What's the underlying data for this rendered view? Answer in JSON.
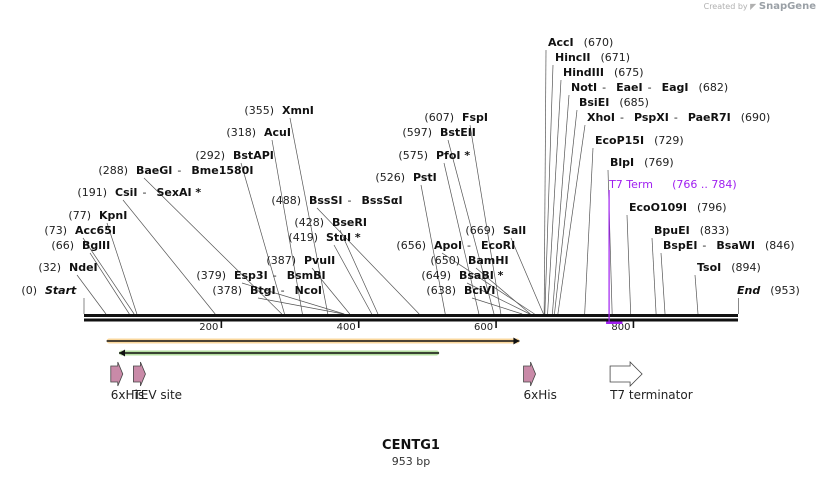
{
  "credit": {
    "prefix": "Created by",
    "brand": "SnapGene"
  },
  "plasmid": {
    "name": "CENTG1",
    "length_label": "953 bp",
    "length": 953
  },
  "ruler": {
    "ticks": [
      200,
      400,
      600,
      800
    ]
  },
  "sites": [
    {
      "pos": 0,
      "pos_label": "(0)",
      "names": [
        "Start"
      ],
      "italic": true,
      "pos_side": "left"
    },
    {
      "pos": 32,
      "pos_label": "(32)",
      "names": [
        "NdeI"
      ],
      "pos_side": "left"
    },
    {
      "pos": 66,
      "pos_label": "(66)",
      "names": [
        "BglII"
      ],
      "pos_side": "left"
    },
    {
      "pos": 73,
      "pos_label": "(73)",
      "names": [
        "Acc65I"
      ],
      "pos_side": "left"
    },
    {
      "pos": 77,
      "pos_label": "(77)",
      "names": [
        "KpnI"
      ],
      "pos_side": "left"
    },
    {
      "pos": 191,
      "pos_label": "(191)",
      "names": [
        "CsiI",
        "SexAI *"
      ],
      "pos_side": "left"
    },
    {
      "pos": 288,
      "pos_label": "(288)",
      "names": [
        "BaeGI",
        "Bme1580I"
      ],
      "pos_side": "left"
    },
    {
      "pos": 292,
      "pos_label": "(292)",
      "names": [
        "BstAPI"
      ],
      "pos_side": "left"
    },
    {
      "pos": 318,
      "pos_label": "(318)",
      "names": [
        "AcuI"
      ],
      "pos_side": "left"
    },
    {
      "pos": 355,
      "pos_label": "(355)",
      "names": [
        "XmnI"
      ],
      "pos_side": "left"
    },
    {
      "pos": 378,
      "pos_label": "(378)",
      "names": [
        "BtgI",
        "NcoI"
      ],
      "pos_side": "left"
    },
    {
      "pos": 379,
      "pos_label": "(379)",
      "names": [
        "Esp3I",
        "BsmBI"
      ],
      "pos_side": "left"
    },
    {
      "pos": 387,
      "pos_label": "(387)",
      "names": [
        "PvuII"
      ],
      "pos_side": "left"
    },
    {
      "pos": 419,
      "pos_label": "(419)",
      "names": [
        "StuI *"
      ],
      "pos_side": "left"
    },
    {
      "pos": 428,
      "pos_label": "(428)",
      "names": [
        "BseRI"
      ],
      "pos_side": "left"
    },
    {
      "pos": 488,
      "pos_label": "(488)",
      "names": [
        "BssSI",
        "BssSαI"
      ],
      "pos_side": "left"
    },
    {
      "pos": 526,
      "pos_label": "(526)",
      "names": [
        "PstI"
      ],
      "pos_side": "left"
    },
    {
      "pos": 575,
      "pos_label": "(575)",
      "names": [
        "PfoI *"
      ],
      "pos_side": "left"
    },
    {
      "pos": 597,
      "pos_label": "(597)",
      "names": [
        "BstEII"
      ],
      "pos_side": "left"
    },
    {
      "pos": 607,
      "pos_label": "(607)",
      "names": [
        "FspI"
      ],
      "pos_side": "left"
    },
    {
      "pos": 638,
      "pos_label": "(638)",
      "names": [
        "BciVI"
      ],
      "pos_side": "left"
    },
    {
      "pos": 649,
      "pos_label": "(649)",
      "names": [
        "BsaBI *"
      ],
      "pos_side": "left"
    },
    {
      "pos": 650,
      "pos_label": "(650)",
      "names": [
        "BamHI"
      ],
      "pos_side": "left"
    },
    {
      "pos": 656,
      "pos_label": "(656)",
      "names": [
        "ApoI",
        "EcoRI"
      ],
      "pos_side": "left"
    },
    {
      "pos": 669,
      "pos_label": "(669)",
      "names": [
        "SalI"
      ],
      "pos_side": "left"
    },
    {
      "pos": 670,
      "pos_label": "(670)",
      "names": [
        "AccI"
      ],
      "pos_side": "right"
    },
    {
      "pos": 671,
      "pos_label": "(671)",
      "names": [
        "HincII"
      ],
      "pos_side": "right"
    },
    {
      "pos": 675,
      "pos_label": "(675)",
      "names": [
        "HindIII"
      ],
      "pos_side": "right"
    },
    {
      "pos": 682,
      "pos_label": "(682)",
      "names": [
        "NotI",
        "EaeI",
        "EagI"
      ],
      "pos_side": "right"
    },
    {
      "pos": 685,
      "pos_label": "(685)",
      "names": [
        "BsiEI"
      ],
      "pos_side": "right"
    },
    {
      "pos": 690,
      "pos_label": "(690)",
      "names": [
        "XhoI",
        "PspXI",
        "PaeR7I"
      ],
      "pos_side": "right"
    },
    {
      "pos": 729,
      "pos_label": "(729)",
      "names": [
        "EcoP15I"
      ],
      "pos_side": "right"
    },
    {
      "pos": 769,
      "pos_label": "(769)",
      "names": [
        "BlpI"
      ],
      "pos_side": "right"
    },
    {
      "pos": 796,
      "pos_label": "(796)",
      "names": [
        "EcoO109I"
      ],
      "pos_side": "right"
    },
    {
      "pos": 833,
      "pos_label": "(833)",
      "names": [
        "BpuEI"
      ],
      "pos_side": "right"
    },
    {
      "pos": 846,
      "pos_label": "(846)",
      "names": [
        "BspEI",
        "BsaWI"
      ],
      "pos_side": "right"
    },
    {
      "pos": 894,
      "pos_label": "(894)",
      "names": [
        "TsoI"
      ],
      "pos_side": "right"
    },
    {
      "pos": 953,
      "pos_label": "(953)",
      "names": [
        "End"
      ],
      "italic": true,
      "pos_side": "right"
    }
  ],
  "primer": {
    "name": "T7 Term",
    "range_label": "(766 .. 784)",
    "start": 766,
    "end": 784,
    "color": "#a020f0"
  },
  "orfs": [
    {
      "start": 33,
      "end": 634,
      "direction": "forward",
      "color": "#f5a623"
    },
    {
      "start": 51,
      "end": 517,
      "direction": "reverse",
      "color": "#5cb82e"
    }
  ],
  "features": [
    {
      "name": "6xHis",
      "start": 39,
      "end": 56,
      "type": "tag",
      "color": "#c98aa8"
    },
    {
      "name": "TEV site",
      "start": 72,
      "end": 92,
      "type": "site",
      "color": "#c98aa8"
    },
    {
      "name": "6xHis",
      "start": 640,
      "end": 657,
      "type": "tag",
      "color": "#c98aa8"
    },
    {
      "name": "T7 terminator",
      "start": 766,
      "end": 813,
      "type": "terminator",
      "color": "#ffffff"
    }
  ]
}
